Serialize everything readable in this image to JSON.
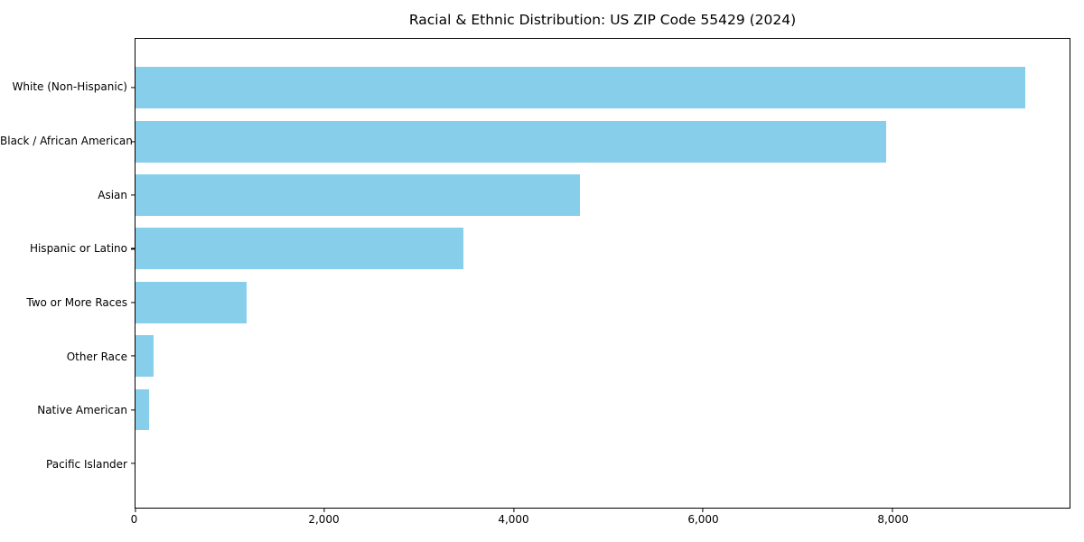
{
  "chart_data": {
    "type": "bar",
    "orientation": "horizontal",
    "title": "Racial & Ethnic Distribution: US ZIP Code 55429 (2024)",
    "categories": [
      "White (Non-Hispanic)",
      "Black / African American",
      "Asian",
      "Hispanic or Latino",
      "Two or More Races",
      "Other Race",
      "Native American",
      "Pacific Islander"
    ],
    "values": [
      9400,
      7930,
      4700,
      3470,
      1180,
      200,
      145,
      0
    ],
    "xlabel": "",
    "ylabel": "",
    "xlim": [
      0,
      9871
    ],
    "x_ticks": [
      {
        "value": 0,
        "label": "0"
      },
      {
        "value": 2000,
        "label": "2,000"
      },
      {
        "value": 4000,
        "label": "4,000"
      },
      {
        "value": 6000,
        "label": "6,000"
      },
      {
        "value": 8000,
        "label": "8,000"
      }
    ],
    "bar_color": "#87CEEB",
    "axis_color": "#000000",
    "text_color": "#000000",
    "background_color": "#ffffff",
    "grid": false,
    "legend": null
  }
}
